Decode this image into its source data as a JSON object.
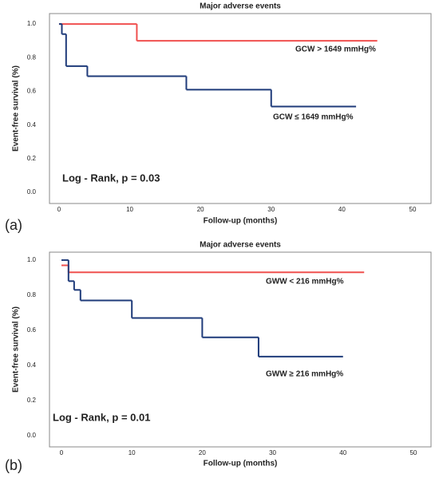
{
  "chart_data": [
    {
      "type": "step",
      "panel_label": "(a)",
      "title": "Major adverse events",
      "xlabel": "Follow-up (months)",
      "ylabel": "Event-free survival (%)",
      "annotation": "Log - Rank, p = 0.03",
      "xlim": [
        -1.35,
        52.6
      ],
      "xticks": [
        0,
        10,
        20,
        30,
        40,
        50
      ],
      "ylim": [
        -0.066,
        1.062
      ],
      "yticks": [
        {
          "value": 0,
          "label": "0.0"
        },
        0.2,
        0.4,
        0.6,
        0.8,
        {
          "value": 1,
          "label": "1.0"
        }
      ],
      "series": [
        {
          "name": "GCW > 1649 mmHg%",
          "color": "#f0504f",
          "x": [
            0,
            11,
            45
          ],
          "values": [
            1.0,
            0.9,
            0.9
          ]
        },
        {
          "name": "GCW ≤ 1649 mmHg%",
          "color": "#1f3b7a",
          "x": [
            0,
            0.4,
            1,
            4,
            18,
            30,
            42
          ],
          "values": [
            1.0,
            0.94,
            0.75,
            0.69,
            0.61,
            0.51,
            0.51
          ]
        }
      ]
    },
    {
      "type": "step",
      "panel_label": "(b)",
      "title": "Major adverse events",
      "xlabel": "Follow-up (months)",
      "ylabel": "Event-free survival (%)",
      "annotation": "Log - Rank, p = 0.01",
      "xlim": [
        -1.7,
        52.5
      ],
      "xticks": [
        0,
        10,
        20,
        30,
        40,
        50
      ],
      "ylim": [
        -0.064,
        1.045
      ],
      "yticks": [
        {
          "value": 0,
          "label": "0.0"
        },
        0.2,
        0.4,
        0.6,
        0.8,
        {
          "value": 1,
          "label": "1.0"
        }
      ],
      "series": [
        {
          "name": "GWW < 216 mmHg%",
          "color": "#f0504f",
          "x": [
            0,
            1,
            43
          ],
          "values": [
            0.97,
            0.93,
            0.93
          ]
        },
        {
          "name": "GWW ≥ 216 mmHg%",
          "color": "#1f3b7a",
          "x": [
            0,
            1,
            1.8,
            2.7,
            10,
            20,
            28,
            40
          ],
          "values": [
            1.0,
            0.88,
            0.83,
            0.77,
            0.67,
            0.56,
            0.45,
            0.45
          ]
        }
      ]
    }
  ]
}
